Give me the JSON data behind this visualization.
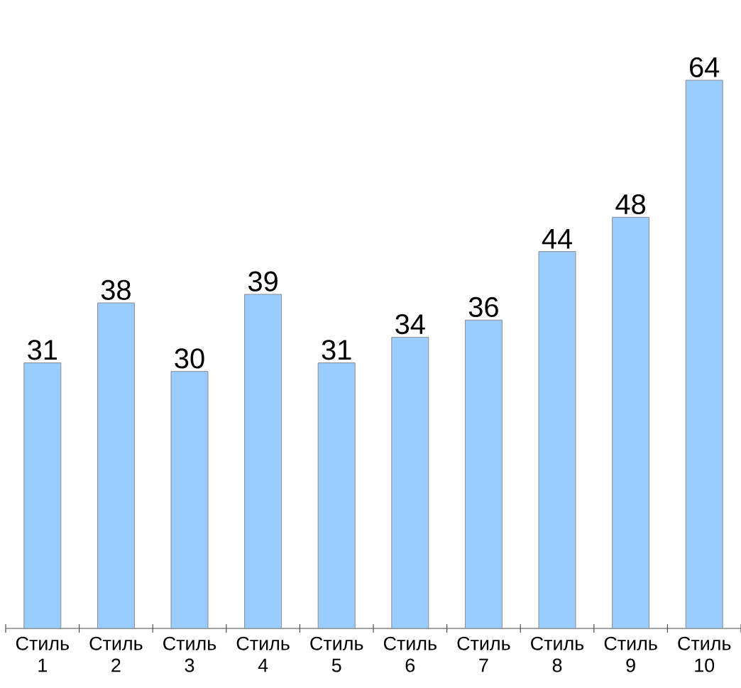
{
  "chart_data": {
    "type": "bar",
    "categories": [
      "Стиль 1",
      "Стиль 2",
      "Стиль 3",
      "Стиль 4",
      "Стиль 5",
      "Стиль 6",
      "Стиль 7",
      "Стиль 8",
      "Стиль 9",
      "Стиль 10"
    ],
    "values": [
      31,
      38,
      30,
      39,
      31,
      34,
      36,
      44,
      48,
      64
    ],
    "color": "#99ccff",
    "data_labels": true
  }
}
